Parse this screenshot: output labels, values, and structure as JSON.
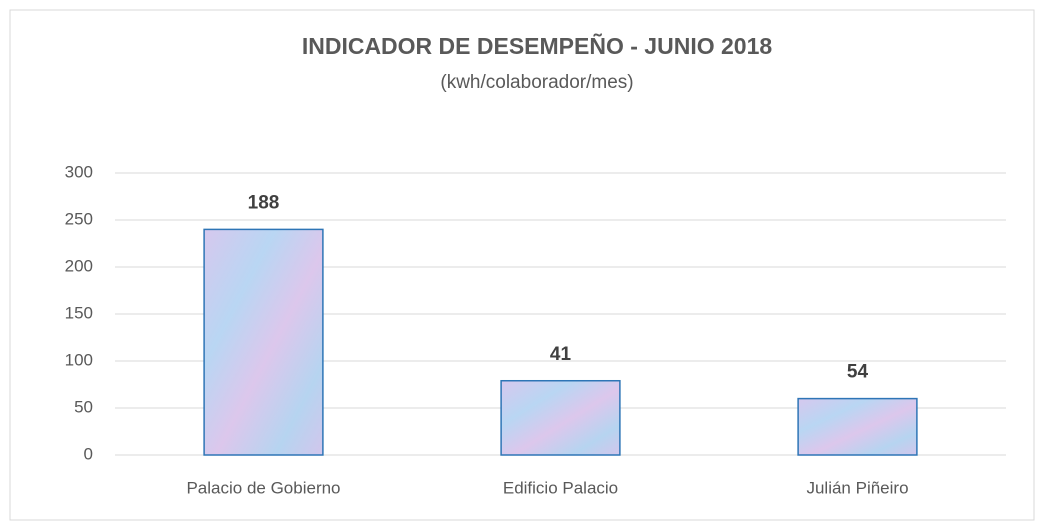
{
  "chart_data": {
    "type": "bar",
    "title": "INDICADOR DE DESEMPEÑO - JUNIO 2018",
    "subtitle": "(kwh/colaborador/mes)",
    "categories": [
      "Palacio de Gobierno",
      "Edificio Palacio",
      "Julián Piñeiro"
    ],
    "values": [
      240,
      79,
      60
    ],
    "annotations": [
      "188",
      "41",
      "54"
    ],
    "color": "#c5d3f0",
    "ylim": [
      0,
      300
    ],
    "yticks": [
      0,
      50,
      100,
      150,
      200,
      250,
      300
    ],
    "grid": true
  }
}
